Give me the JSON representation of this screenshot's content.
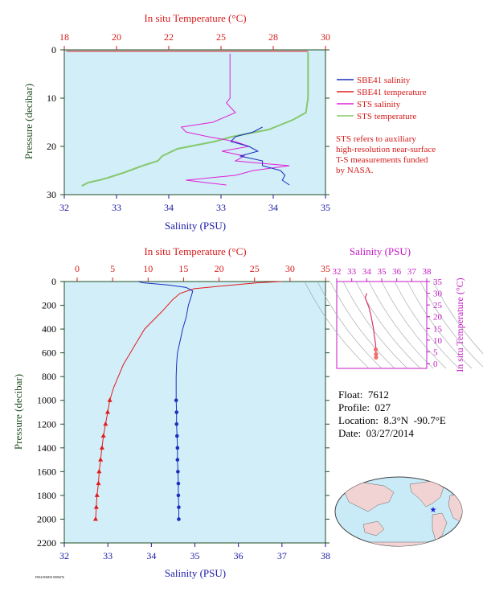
{
  "colors": {
    "panel_bg": "#d2eef9",
    "salinity": "#1a2fbf",
    "temperature": "#e21b1b",
    "sts_salinity": "#e020d8",
    "sts_temperature": "#86c86c",
    "axis_red": "#d61a1a",
    "axis_green": "#1f4d22",
    "axis_blue": "#1a1aa8",
    "magenta": "#c418c4"
  },
  "top_panel": {
    "temp_axis_title": "In situ Temperature (°C)",
    "sal_axis_title": "Salinity (PSU)",
    "pres_axis_title": "Pressure (decibar)",
    "temp_ticks": [
      "18",
      "20",
      "22",
      "25",
      "28",
      "30"
    ],
    "sal_ticks": [
      "32",
      "33",
      "34",
      "33",
      "34",
      "35"
    ],
    "pres_ticks": [
      "0",
      "10",
      "20",
      "30"
    ],
    "legend": [
      {
        "label": "SBE41 salinity",
        "color": "#1a2fbf"
      },
      {
        "label": "SBE41 temperature",
        "color": "#e21b1b"
      },
      {
        "label": "STS salinity",
        "color": "#e020d8"
      },
      {
        "label": "STS temperature",
        "color": "#86c86c"
      }
    ],
    "note_lines": [
      "STS refers to auxiliary",
      "high-resolution near-surface",
      "T-S measurements funded",
      "by NASA."
    ]
  },
  "bottom_panel": {
    "temp_axis_title": "In situ Temperature (°C)",
    "sal_axis_title": "Salinity (PSU)",
    "pres_axis_title": "Pressure (decibar)",
    "temp_ticks": [
      "0",
      "5",
      "10",
      "15",
      "20",
      "25",
      "30",
      "35"
    ],
    "sal_ticks": [
      "32",
      "33",
      "34",
      "35",
      "36",
      "37",
      "38"
    ],
    "pres_ticks": [
      "0",
      "200",
      "400",
      "600",
      "800",
      "1000",
      "1200",
      "1400",
      "1600",
      "1800",
      "2000",
      "2200"
    ]
  },
  "ts_panel": {
    "sal_axis_title": "Salinity (PSU)",
    "temp_axis_title": "In situ Temperature (°C)",
    "sal_ticks": [
      "32",
      "33",
      "34",
      "35",
      "36",
      "37",
      "38"
    ],
    "temp_ticks": [
      "35",
      "30",
      "25",
      "20",
      "15",
      "10",
      "5",
      "0"
    ]
  },
  "float_info": {
    "float": "Float:  7612",
    "profile": "Profile:  027",
    "location": "Location:  8.3°N  -90.7°E",
    "date": "Date:  03/27/2014"
  },
  "footer_code": "F0041MSD0 0000S7b",
  "chart_data": [
    {
      "type": "line",
      "title": "",
      "xlabel": "Salinity (PSU) / In situ Temperature (°C)",
      "ylabel": "Pressure (decibar)",
      "xlim_temperature": [
        18,
        30
      ],
      "ylim": [
        30,
        0
      ],
      "grid": false,
      "legend_position": "right",
      "series": [
        {
          "name": "STS temperature",
          "pressure": [
            0.5,
            5,
            10,
            13,
            14.5,
            16.5,
            18,
            19,
            20.5,
            22,
            23,
            24,
            25,
            25.5,
            26.5,
            27,
            27.5,
            28.2
          ],
          "values": [
            29.2,
            29.2,
            29.2,
            29.1,
            28.5,
            27.4,
            25.7,
            24.9,
            23.2,
            22.5,
            22.3,
            21.6,
            21.0,
            20.7,
            20.0,
            19.6,
            19.1,
            18.8
          ]
        },
        {
          "name": "SBE41 temperature",
          "pressure": [
            0.3,
            0.3
          ],
          "values": [
            18.1,
            29.2
          ]
        },
        {
          "name": "STS salinity",
          "pressure": [
            0.8,
            5,
            10,
            11,
            13,
            15,
            16,
            17,
            18,
            19,
            20,
            21,
            22,
            23,
            23.5,
            24,
            25,
            26,
            27,
            28
          ],
          "values": [
            34.24,
            34.24,
            34.24,
            34.2,
            34.3,
            34.05,
            33.7,
            33.75,
            34.0,
            34.3,
            34.45,
            34.15,
            34.4,
            34.3,
            34.58,
            34.9,
            34.5,
            34.3,
            33.75,
            34.2
          ]
        },
        {
          "name": "SBE41 salinity",
          "pressure": [
            16,
            17,
            18,
            19,
            20,
            21,
            22,
            23,
            24,
            25,
            26,
            27,
            28
          ],
          "values": [
            34.6,
            34.5,
            34.3,
            34.25,
            34.45,
            34.55,
            34.35,
            34.6,
            34.6,
            34.8,
            34.85,
            34.82,
            34.9
          ]
        }
      ]
    },
    {
      "type": "line",
      "title": "",
      "xlabel": "Salinity (PSU)",
      "ylabel": "Pressure (decibar)",
      "xlim_salinity": [
        32,
        38
      ],
      "xlim_temperature": [
        0,
        35
      ],
      "ylim": [
        2200,
        0
      ],
      "grid": false,
      "series": [
        {
          "name": "Temperature",
          "pressure": [
            0,
            10,
            40,
            60,
            100,
            150,
            250,
            400,
            500,
            600,
            700,
            800,
            900,
            1000,
            1100,
            1200,
            1300,
            1400,
            1500,
            1600,
            1700,
            1800,
            1900,
            2000
          ],
          "values": [
            28.8,
            25.5,
            20,
            16.5,
            14.5,
            13.5,
            12,
            9.5,
            8.5,
            7.5,
            6.5,
            5.8,
            5.1,
            4.6,
            4.3,
            4.0,
            3.7,
            3.5,
            3.3,
            3.1,
            3.0,
            2.8,
            2.7,
            2.6
          ]
        },
        {
          "name": "Salinity",
          "pressure": [
            0,
            10,
            30,
            50,
            80,
            120,
            200,
            300,
            400,
            500,
            600,
            700,
            800,
            900,
            1000,
            1100,
            1200,
            1300,
            1400,
            1500,
            1600,
            1700,
            1800,
            1900,
            2000
          ],
          "values": [
            33.7,
            33.8,
            34.4,
            34.8,
            34.95,
            34.92,
            34.85,
            34.8,
            34.72,
            34.66,
            34.6,
            34.58,
            34.57,
            34.57,
            34.57,
            34.58,
            34.58,
            34.59,
            34.6,
            34.6,
            34.61,
            34.62,
            34.62,
            34.63,
            34.63
          ]
        }
      ]
    },
    {
      "type": "scatter",
      "title": "",
      "xlabel": "Salinity (PSU)",
      "ylabel": "In situ Temperature (°C)",
      "xlim": [
        32,
        38
      ],
      "ylim": [
        -2,
        35
      ],
      "series": [
        {
          "name": "T-S",
          "x": [
            34.0,
            33.9,
            34.05,
            34.15,
            34.3,
            34.45,
            34.5,
            34.55,
            34.6,
            34.6,
            34.62,
            34.62
          ],
          "y": [
            30,
            28,
            25.5,
            24,
            20,
            15,
            12,
            10,
            8,
            6,
            4,
            2.6
          ]
        }
      ]
    }
  ]
}
